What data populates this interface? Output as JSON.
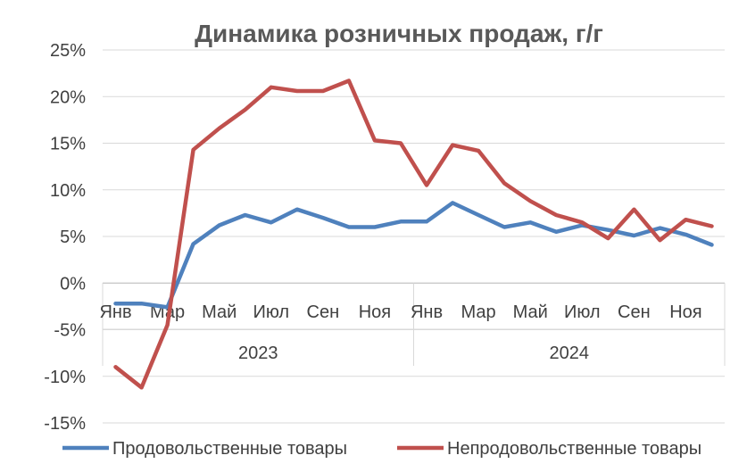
{
  "chart_data": {
    "type": "line",
    "title": "Динамика розничных продаж, г/г",
    "x_month_labels": [
      "Янв",
      "Мар",
      "Май",
      "Июл",
      "Сен",
      "Ноя",
      "Янв",
      "Мар",
      "Май",
      "Июл",
      "Сен",
      "Ноя"
    ],
    "x_year_labels": [
      "2023",
      "2024"
    ],
    "x": [
      "2023-01",
      "2023-02",
      "2023-03",
      "2023-04",
      "2023-05",
      "2023-06",
      "2023-07",
      "2023-08",
      "2023-09",
      "2023-10",
      "2023-11",
      "2023-12",
      "2024-01",
      "2024-02",
      "2024-03",
      "2024-04",
      "2024-05",
      "2024-06",
      "2024-07",
      "2024-08",
      "2024-09",
      "2024-10",
      "2024-11",
      "2024-12"
    ],
    "y_ticks": [
      "25%",
      "20%",
      "15%",
      "10%",
      "5%",
      "0%",
      "-5%",
      "-10%",
      "-15%"
    ],
    "ylim": [
      -15,
      25
    ],
    "y_unit": "%",
    "grid": "horizontal",
    "legend_position": "bottom",
    "series": [
      {
        "name": "Продовольственные товары",
        "color": "#4F81BD",
        "values": [
          -2.2,
          -2.2,
          -2.6,
          4.2,
          6.2,
          7.3,
          6.5,
          7.9,
          7.0,
          6.0,
          6.0,
          6.6,
          6.6,
          8.6,
          7.3,
          6.0,
          6.5,
          5.5,
          6.2,
          5.7,
          5.1,
          5.9,
          5.2,
          4.1
        ]
      },
      {
        "name": "Непродовольственные товары",
        "color": "#C0504D",
        "values": [
          -9.0,
          -11.2,
          -4.5,
          14.3,
          16.6,
          18.6,
          21.0,
          20.6,
          20.6,
          21.7,
          15.3,
          15.0,
          10.5,
          14.8,
          14.2,
          10.7,
          8.8,
          7.3,
          6.5,
          4.8,
          7.9,
          4.6,
          6.8,
          6.1
        ]
      }
    ]
  }
}
